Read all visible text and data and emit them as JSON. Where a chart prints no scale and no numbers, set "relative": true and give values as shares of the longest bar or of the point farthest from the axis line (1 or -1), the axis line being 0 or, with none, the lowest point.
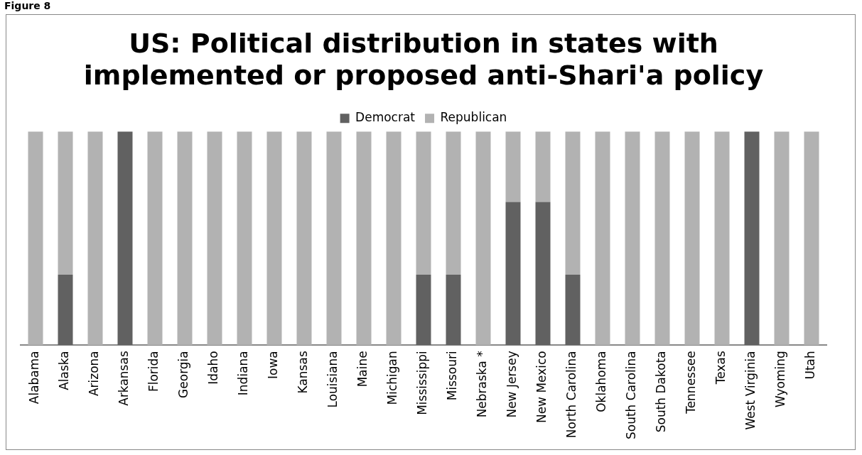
{
  "chart_data": {
    "type": "bar",
    "title": "US: Political distribution in states with implemented or proposed anti-Shari'a policy",
    "annotations": [
      "Figure 8"
    ],
    "stacked": true,
    "relative": true,
    "legend": "top",
    "categories": [
      "Alabama",
      "Alaska",
      "Arizona",
      "Arkansas",
      "Florida",
      "Georgia",
      "Idaho",
      "Indiana",
      "Iowa",
      "Kansas",
      "Louisiana",
      "Maine",
      "Michigan",
      "Mississippi",
      "Missouri",
      "Nebraska *",
      "New Jersey",
      "New Mexico",
      "North Carolina",
      "Oklahoma",
      "South Carolina",
      "South Dakota",
      "Tennessee",
      "Texas",
      "West Virginia",
      "Wyoming",
      "Utah"
    ],
    "series": [
      {
        "name": "Democrat",
        "color": "#616161",
        "values": [
          0,
          0.33,
          0,
          1,
          0,
          0,
          0,
          0,
          0,
          0,
          0,
          0,
          0,
          0.33,
          0.33,
          0,
          0.67,
          0.67,
          0.33,
          0,
          0,
          0,
          0,
          0,
          1,
          0,
          0
        ]
      },
      {
        "name": "Republican",
        "color": "#b2b2b2",
        "values": [
          1,
          0.67,
          1,
          0,
          1,
          1,
          1,
          1,
          1,
          1,
          1,
          1,
          1,
          0.67,
          0.67,
          1,
          0.33,
          0.33,
          0.67,
          1,
          1,
          1,
          1,
          1,
          0,
          1,
          1
        ]
      }
    ]
  }
}
